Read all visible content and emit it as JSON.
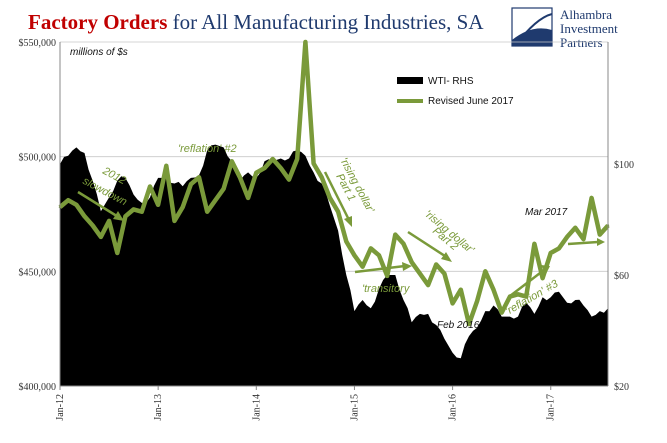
{
  "title": {
    "part1": "Factory Orders",
    "part2": " for All Manufacturing Industries, SA",
    "color_part1": "#c00000",
    "color_part2": "#1f3a6e"
  },
  "logo": {
    "line1": "Alhambra",
    "line2": "Investment",
    "line3": "Partners",
    "color": "#1f3a6e"
  },
  "chart_data": {
    "type": "line",
    "units_label": "millions of $s",
    "left_axis": {
      "ticks": [
        "$550,000",
        "$500,000",
        "$450,000",
        "$400,000"
      ],
      "tick_values": [
        550000,
        500000,
        450000,
        400000
      ],
      "ylim": [
        400000,
        550000
      ]
    },
    "right_axis": {
      "ticks": [
        "$100",
        "$60",
        "$20"
      ],
      "tick_values": [
        100,
        60,
        20
      ],
      "ylim": [
        20,
        144
      ]
    },
    "x_ticks": [
      "Jan-12",
      "Jan-13",
      "Jan-14",
      "Jan-15",
      "Jan-16",
      "Jan-17"
    ],
    "legend": {
      "placement": "top-right",
      "items": [
        {
          "label": "WTI- RHS",
          "color": "#000000",
          "kind": "area"
        },
        {
          "label": "Revised June 2017",
          "color": "#7a9a3a",
          "kind": "line"
        }
      ]
    },
    "grid": true,
    "series": [
      {
        "name": "Revised June 2017",
        "axis": "left",
        "color": "#7a9a3a",
        "start": "2012-01",
        "values": [
          478000,
          481000,
          479000,
          474000,
          470000,
          465000,
          472000,
          458000,
          474000,
          477000,
          476000,
          487000,
          479000,
          496000,
          472000,
          478000,
          488000,
          491000,
          476000,
          481000,
          486000,
          498000,
          491000,
          482000,
          493000,
          495000,
          499000,
          495000,
          490000,
          499000,
          550000,
          497000,
          491000,
          482000,
          476000,
          463000,
          457000,
          452000,
          460000,
          457000,
          448000,
          466000,
          462000,
          454000,
          449000,
          444000,
          453000,
          449000,
          436000,
          442000,
          427000,
          437000,
          450000,
          442000,
          432000,
          439000,
          440000,
          439000,
          462000,
          447000,
          458000,
          460000,
          465000,
          469000,
          464000,
          482000,
          466000,
          470000
        ]
      },
      {
        "name": "WTI- RHS",
        "axis": "right",
        "color": "#000000",
        "start": "2012-01",
        "values": [
          100,
          103,
          106,
          104,
          94,
          83,
          88,
          94,
          95,
          89,
          86,
          88,
          95,
          95,
          93,
          92,
          95,
          96,
          105,
          107,
          106,
          101,
          94,
          97,
          95,
          101,
          101,
          102,
          102,
          105,
          103,
          97,
          93,
          85,
          76,
          60,
          47,
          51,
          48,
          55,
          60,
          60,
          51,
          43,
          46,
          46,
          42,
          37,
          32,
          30,
          38,
          41,
          47,
          49,
          45,
          45,
          45,
          50,
          46,
          52,
          52,
          54,
          50,
          51,
          49,
          45,
          47,
          48
        ]
      }
    ],
    "annotations": [
      {
        "text": "2012",
        "style": "green"
      },
      {
        "text": "slowdown",
        "style": "green"
      },
      {
        "text": "'reflation' #2",
        "style": "green"
      },
      {
        "text": "'rising dollar'",
        "style": "green"
      },
      {
        "text": "Part 1",
        "style": "green"
      },
      {
        "text": "'rising dollar'",
        "style": "green"
      },
      {
        "text": "Part 2",
        "style": "green"
      },
      {
        "text": "'transitory",
        "style": "green"
      },
      {
        "text": "'reflation' #3",
        "style": "green"
      },
      {
        "text": "Feb 2016",
        "style": "dark"
      },
      {
        "text": "Mar 2017",
        "style": "dark"
      }
    ]
  }
}
